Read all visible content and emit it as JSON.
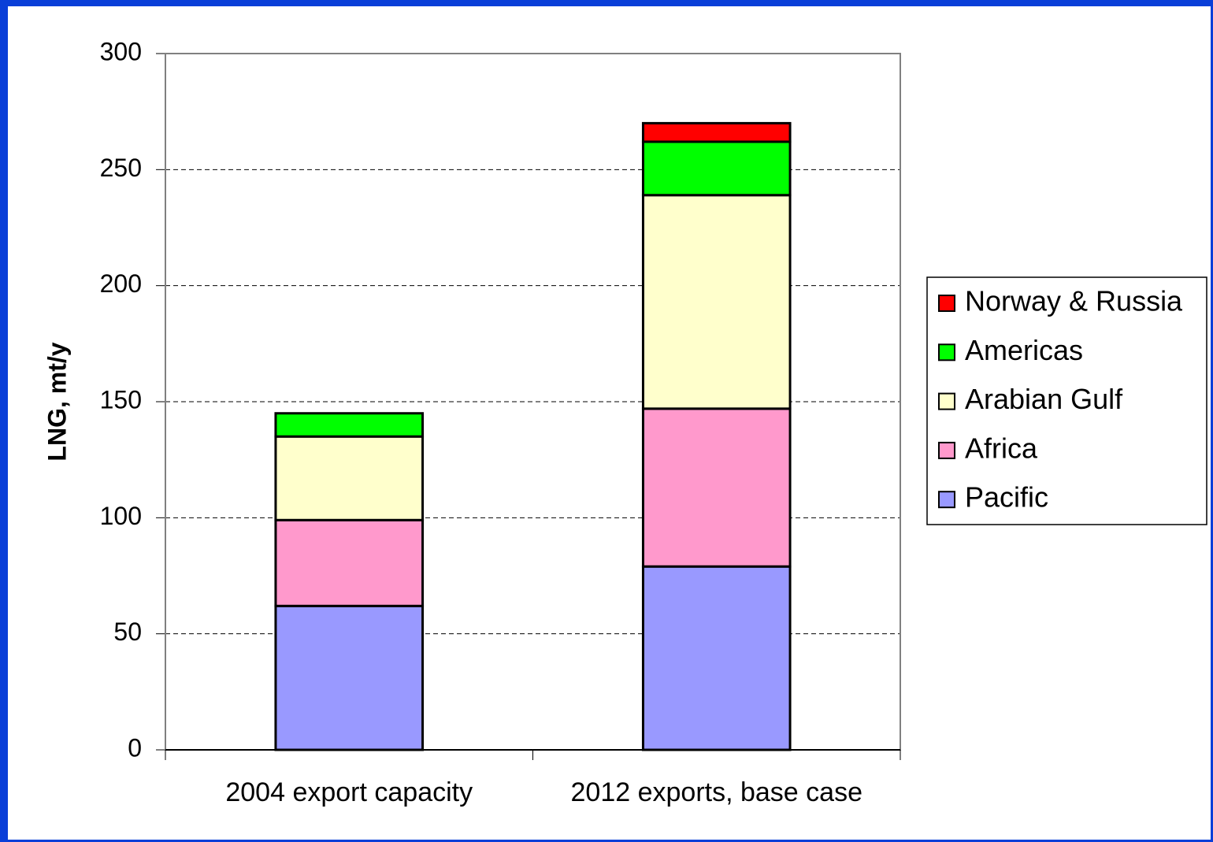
{
  "chart_data": {
    "type": "stacked_bar",
    "y_label": "LNG, mt/y",
    "categories": [
      "2004 export capacity",
      "2012 exports, base case"
    ],
    "series": [
      {
        "name": "Pacific",
        "color": "#9999ff",
        "values": [
          62,
          79
        ]
      },
      {
        "name": "Africa",
        "color": "#ff99cc",
        "values": [
          37,
          68
        ]
      },
      {
        "name": "Arabian Gulf",
        "color": "#ffffcc",
        "values": [
          36,
          92
        ]
      },
      {
        "name": "Americas",
        "color": "#00ff00",
        "values": [
          10,
          23
        ]
      },
      {
        "name": "Norway & Russia",
        "color": "#ff0000",
        "values": [
          0,
          8
        ]
      }
    ],
    "ylim": [
      0,
      300
    ],
    "yticks": [
      0,
      50,
      100,
      150,
      200,
      250,
      300
    ],
    "grid": true,
    "legend": "right"
  }
}
